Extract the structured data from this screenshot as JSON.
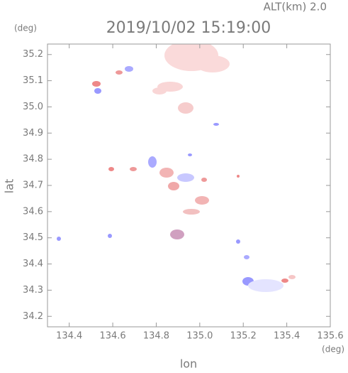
{
  "chart_data": {
    "type": "map",
    "title": "2019/10/02 15:19:00",
    "subtitle": "ALT(km)  2.0",
    "x_label": "lon",
    "y_label": "lat",
    "x_unit": "(deg)",
    "y_unit": "(deg)",
    "xlim": [
      134.3,
      135.6
    ],
    "xticks": [
      134.4,
      134.6,
      134.8,
      {
        "value": 135,
        "label": "135.0"
      },
      135.2,
      135.4,
      135.6
    ],
    "ylim": [
      34.16,
      35.24
    ],
    "yticks": [
      34.2,
      34.3,
      34.4,
      34.5,
      34.6,
      34.7,
      34.8,
      34.9,
      {
        "value": 35,
        "label": "35.0"
      },
      35.1,
      35.2
    ]
  }
}
